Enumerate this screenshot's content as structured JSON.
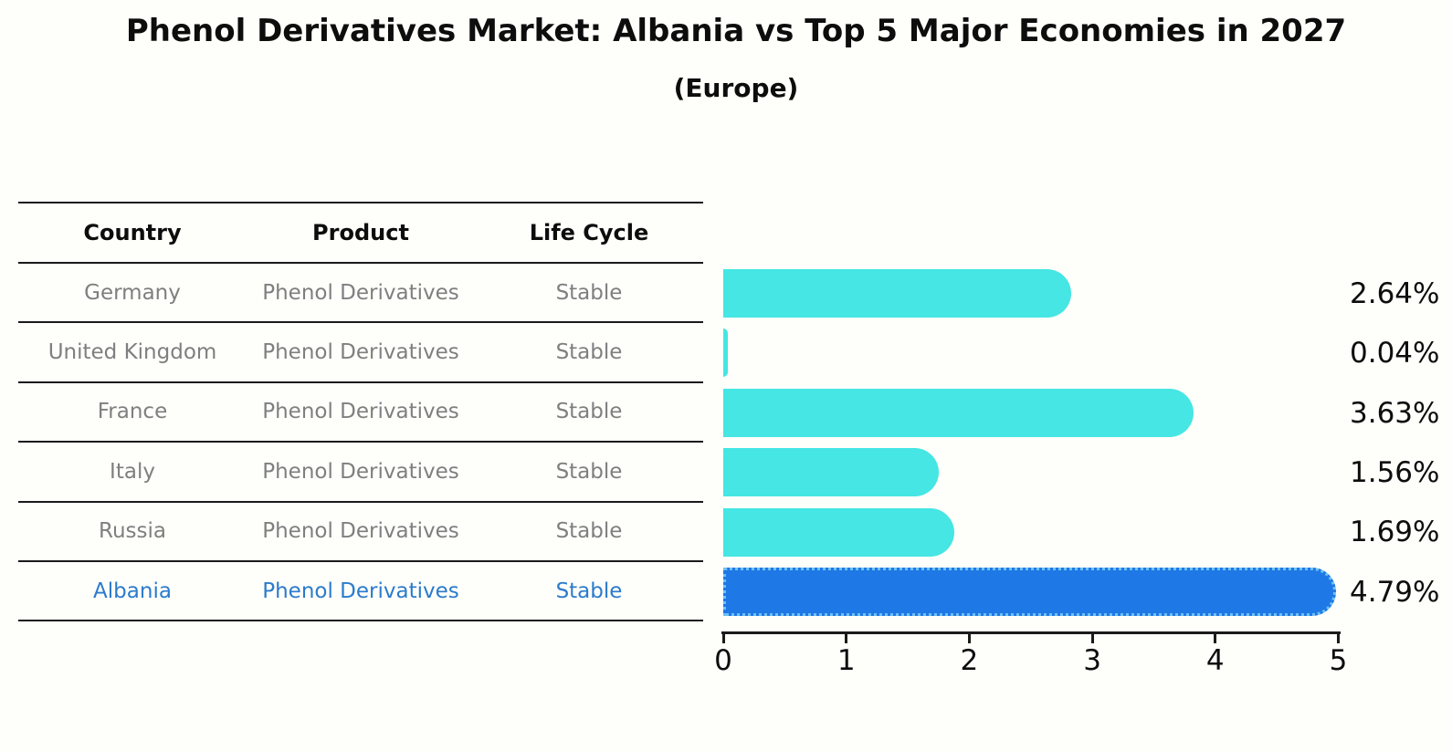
{
  "title": "Phenol Derivatives Market: Albania vs Top 5 Major Economies in 2027",
  "subtitle": "(Europe)",
  "table": {
    "headers": [
      "Country",
      "Product",
      "Life Cycle"
    ],
    "rows": [
      {
        "country": "Germany",
        "product": "Phenol Derivatives",
        "life_cycle": "Stable",
        "highlighted": false
      },
      {
        "country": "United Kingdom",
        "product": "Phenol Derivatives",
        "life_cycle": "Stable",
        "highlighted": false
      },
      {
        "country": "France",
        "product": "Phenol Derivatives",
        "life_cycle": "Stable",
        "highlighted": false
      },
      {
        "country": "Italy",
        "product": "Phenol Derivatives",
        "life_cycle": "Stable",
        "highlighted": false
      },
      {
        "country": "Russia",
        "product": "Phenol Derivatives",
        "life_cycle": "Stable",
        "highlighted": false
      },
      {
        "country": "Albania",
        "product": "Phenol Derivatives",
        "life_cycle": "Stable",
        "highlighted": true
      }
    ]
  },
  "chart_data": {
    "type": "bar",
    "orientation": "horizontal",
    "title": "Phenol Derivatives Market: Albania vs Top 5 Major Economies in 2027",
    "subtitle": "(Europe)",
    "categories": [
      "Germany",
      "United Kingdom",
      "France",
      "Italy",
      "Russia",
      "Albania"
    ],
    "values": [
      2.64,
      0.04,
      3.63,
      1.56,
      1.69,
      4.79
    ],
    "value_labels": [
      "2.64%",
      "0.04%",
      "3.63%",
      "1.56%",
      "1.69%",
      "4.79%"
    ],
    "xlim": [
      0,
      5
    ],
    "x_ticks": [
      0,
      1,
      2,
      3,
      4,
      5
    ],
    "grid": false,
    "legend": false,
    "highlight_index": 5,
    "bar_color": "#45e6e3",
    "highlight_bar_color": "#1e79e6",
    "highlight_bar_edge_color": "#6fc0f5",
    "highlight_text_color": "#2b7bcc",
    "table_text_color": "#7f7f7f"
  }
}
